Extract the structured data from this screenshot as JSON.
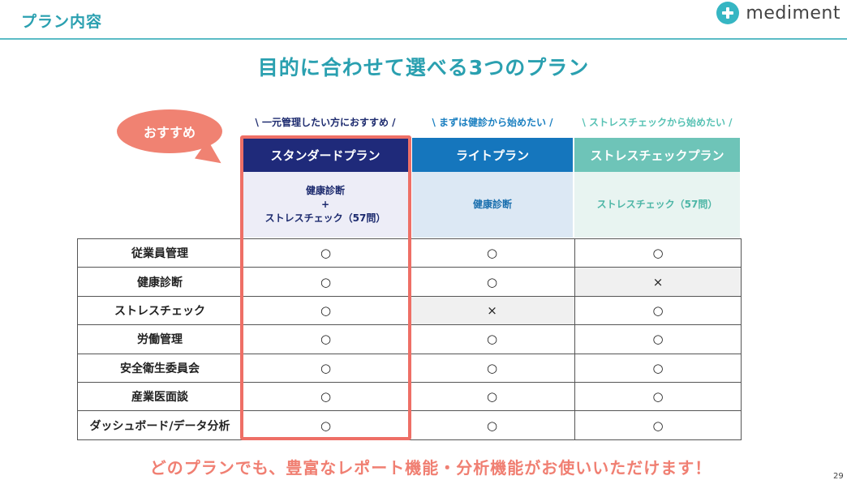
{
  "header": {
    "title": "プラン内容",
    "logo_text": "mediment",
    "logo_icon": "plus-circle-icon"
  },
  "main_title": "目的に合わせて選べる3つのプラン",
  "recommend_bubble": "おすすめ",
  "plans": [
    {
      "tagline": "\\ 一元管理したい方におすすめ /",
      "name": "スタンダードプラン",
      "content_line1": "健康診断",
      "content_line2": "+",
      "content_line3": "ストレスチェック（57問）"
    },
    {
      "tagline": "\\ まずは健診から始めたい /",
      "name": "ライトプラン",
      "content_line1": "健康診断"
    },
    {
      "tagline": "\\ ストレスチェックから始めたい /",
      "name": "ストレスチェックプラン",
      "content_line1": "ストレスチェック（57問）"
    }
  ],
  "features": [
    {
      "label": "従業員管理",
      "standard": "○",
      "lite": "○",
      "stress": "○"
    },
    {
      "label": "健康診断",
      "standard": "○",
      "lite": "○",
      "stress": "×"
    },
    {
      "label": "ストレスチェック",
      "standard": "○",
      "lite": "×",
      "stress": "○"
    },
    {
      "label": "労働管理",
      "standard": "○",
      "lite": "○",
      "stress": "○"
    },
    {
      "label": "安全衛生委員会",
      "standard": "○",
      "lite": "○",
      "stress": "○"
    },
    {
      "label": "産業医面談",
      "standard": "○",
      "lite": "○",
      "stress": "○"
    },
    {
      "label": "ダッシュボード/データ分析",
      "standard": "○",
      "lite": "○",
      "stress": "○"
    }
  ],
  "footer": "どのプランでも、豊富なレポート機能・分析機能がお使いいただけます！",
  "page_number": "29",
  "colors": {
    "teal": "#2aa0b0",
    "standard": "#1f2a7a",
    "lite": "#1576bd",
    "stress": "#6ec4b8",
    "highlight": "#ee6f66"
  }
}
